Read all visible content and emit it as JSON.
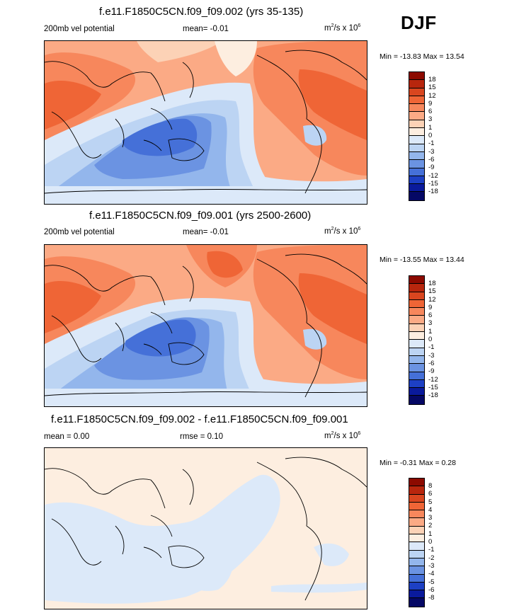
{
  "season": "DJF",
  "panels": [
    {
      "title": "f.e11.F1850C5CN.f09_f09.002 (yrs 35-135)",
      "left_label": "200mb vel potential",
      "center_label": "mean=  -0.01",
      "units_main": "m",
      "units_sup1": "2",
      "units_mid": "/s x 10",
      "units_sup2": "6",
      "minmax": "Min = -13.83 Max =  13.54",
      "legend": [
        "18",
        "15",
        "12",
        "9",
        "6",
        "3",
        "1",
        "0",
        "-1",
        "-3",
        "-6",
        "-9",
        "-12",
        "-15",
        "-18"
      ]
    },
    {
      "title": "f.e11.F1850C5CN.f09_f09.001 (yrs 2500-2600)",
      "left_label": "200mb vel potential",
      "center_label": "mean=  -0.01",
      "units_main": "m",
      "units_sup1": "2",
      "units_mid": "/s x 10",
      "units_sup2": "6",
      "minmax": "Min = -13.55 Max =  13.44",
      "legend": [
        "18",
        "15",
        "12",
        "9",
        "6",
        "3",
        "1",
        "0",
        "-1",
        "-3",
        "-6",
        "-9",
        "-12",
        "-15",
        "-18"
      ]
    },
    {
      "title": "f.e11.F1850C5CN.f09_f09.002 - f.e11.F1850C5CN.f09_f09.001",
      "left_label": "mean =   0.00",
      "center_label": "rmse =   0.10",
      "units_main": "m",
      "units_sup1": "2",
      "units_mid": "/s x 10",
      "units_sup2": "6",
      "minmax": "Min =  -0.31 Max =   0.28",
      "legend": [
        "8",
        "6",
        "5",
        "4",
        "3",
        "2",
        "1",
        "0",
        "-1",
        "-2",
        "-3",
        "-4",
        "-5",
        "-6",
        "-8"
      ]
    }
  ],
  "colors": {
    "colorbar": [
      "#8c0a00",
      "#b8260d",
      "#d9461f",
      "#ef6536",
      "#f7875c",
      "#fbaa85",
      "#fcd2b6",
      "#fdeee0",
      "#dce9f9",
      "#bcd4f3",
      "#93b6ec",
      "#6b93e2",
      "#4570d8",
      "#1d40c4",
      "#0a1a9c",
      "#050865"
    ]
  }
}
